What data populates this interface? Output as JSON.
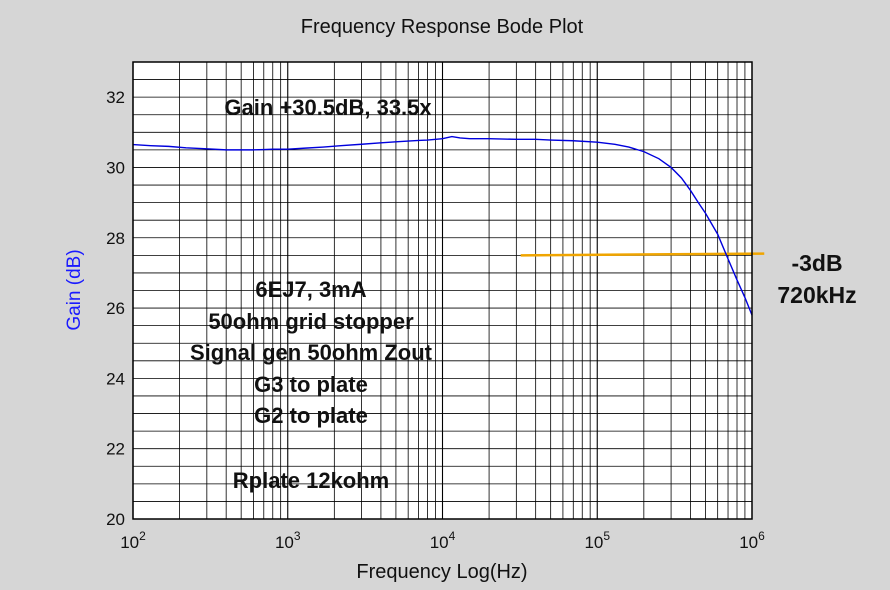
{
  "chart_data": {
    "type": "line",
    "title": "Frequency Response Bode Plot",
    "xlabel": "Frequency Log(Hz)",
    "ylabel": "Gain (dB)",
    "x_scale": "log",
    "xlim": [
      100,
      1000000
    ],
    "ylim": [
      20,
      33
    ],
    "grid": true,
    "x_ticks": [
      {
        "value": 100,
        "base": "10",
        "exp": "2"
      },
      {
        "value": 1000,
        "base": "10",
        "exp": "3"
      },
      {
        "value": 10000,
        "base": "10",
        "exp": "4"
      },
      {
        "value": 100000,
        "base": "10",
        "exp": "5"
      },
      {
        "value": 1000000,
        "base": "10",
        "exp": "6"
      }
    ],
    "y_ticks": [
      {
        "value": 20,
        "label": "20"
      },
      {
        "value": 22,
        "label": "22"
      },
      {
        "value": 24,
        "label": "24"
      },
      {
        "value": 26,
        "label": "26"
      },
      {
        "value": 28,
        "label": "28"
      },
      {
        "value": 30,
        "label": "30"
      },
      {
        "value": 32,
        "label": "32"
      }
    ],
    "series": [
      {
        "color": "#0000dd",
        "points": [
          [
            100,
            30.65
          ],
          [
            130,
            30.62
          ],
          [
            170,
            30.6
          ],
          [
            220,
            30.56
          ],
          [
            300,
            30.53
          ],
          [
            400,
            30.5
          ],
          [
            500,
            30.5
          ],
          [
            600,
            30.5
          ],
          [
            700,
            30.51
          ],
          [
            800,
            30.52
          ],
          [
            1000,
            30.52
          ],
          [
            1300,
            30.55
          ],
          [
            1700,
            30.58
          ],
          [
            2200,
            30.62
          ],
          [
            3000,
            30.66
          ],
          [
            4000,
            30.7
          ],
          [
            5000,
            30.73
          ],
          [
            6000,
            30.75
          ],
          [
            7000,
            30.77
          ],
          [
            8000,
            30.78
          ],
          [
            10000,
            30.82
          ],
          [
            11500,
            30.88
          ],
          [
            13000,
            30.84
          ],
          [
            15000,
            30.82
          ],
          [
            20000,
            30.82
          ],
          [
            30000,
            30.8
          ],
          [
            40000,
            30.8
          ],
          [
            50000,
            30.78
          ],
          [
            70000,
            30.76
          ],
          [
            100000,
            30.72
          ],
          [
            130000,
            30.66
          ],
          [
            160000,
            30.58
          ],
          [
            200000,
            30.45
          ],
          [
            250000,
            30.25
          ],
          [
            300000,
            30.0
          ],
          [
            350000,
            29.7
          ],
          [
            400000,
            29.35
          ],
          [
            450000,
            29.0
          ],
          [
            500000,
            28.7
          ],
          [
            600000,
            28.1
          ],
          [
            700000,
            27.4
          ],
          [
            800000,
            26.8
          ],
          [
            900000,
            26.3
          ],
          [
            1000000,
            25.8
          ]
        ]
      }
    ],
    "reference_line": {
      "color": "#f0a500",
      "x_start": 32000,
      "x_end": 1200000,
      "y_start": 27.5,
      "y_end": 27.55
    },
    "annotations": {
      "gain": "Gain +30.5dB, 33.5x",
      "cutoff_db": "-3dB",
      "cutoff_freq": "720kHz",
      "conditions": [
        "6EJ7, 3mA",
        "50ohm grid stopper",
        "Signal gen 50ohm Zout",
        "G3 to plate",
        "G2 to plate"
      ],
      "rplate": "Rplate 12kohm"
    },
    "colors": {
      "background": "#d6d6d6",
      "plot_area": "#ffffff",
      "grid": "#000000",
      "ylabel": "#1a1aff"
    }
  }
}
